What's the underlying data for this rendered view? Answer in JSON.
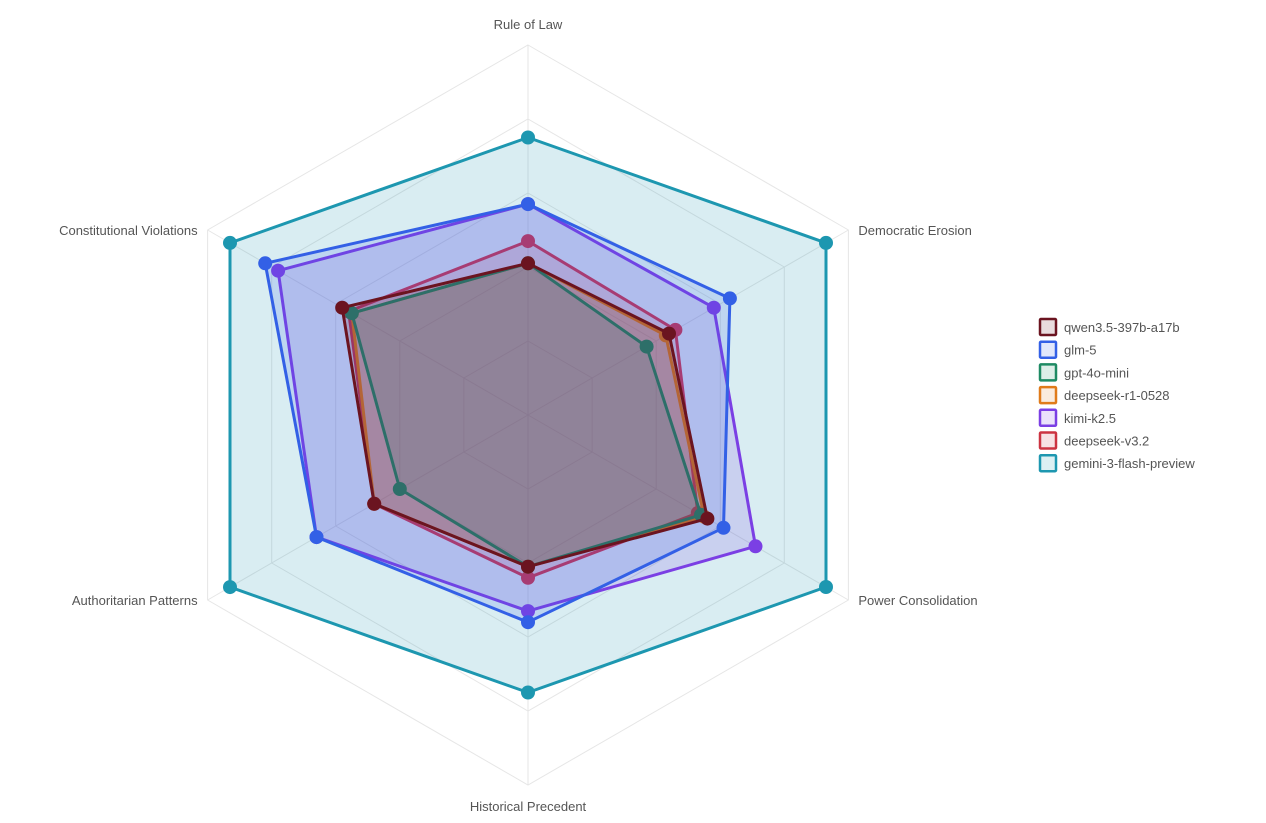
{
  "chart_data": {
    "type": "radar",
    "axes": [
      "Rule of Law",
      "Democratic Erosion",
      "Power Consolidation",
      "Historical Precedent",
      "Authoritarian Patterns",
      "Constitutional Violations"
    ],
    "range": [
      0,
      1
    ],
    "grid_levels": 5,
    "legend_position": "right",
    "series": [
      {
        "name": "qwen3.5-397b-a17b",
        "color": "#6b1420",
        "values": [
          0.41,
          0.44,
          0.56,
          0.41,
          0.48,
          0.58
        ]
      },
      {
        "name": "glm-5",
        "color": "#3360e6",
        "values": [
          0.57,
          0.63,
          0.61,
          0.56,
          0.66,
          0.82
        ]
      },
      {
        "name": "gpt-4o-mini",
        "color": "#1e8a63",
        "values": [
          0.41,
          0.37,
          0.54,
          0.41,
          0.4,
          0.55
        ]
      },
      {
        "name": "deepseek-r1-0528",
        "color": "#e07b1a",
        "values": [
          0.41,
          0.43,
          0.55,
          0.41,
          0.48,
          0.55
        ]
      },
      {
        "name": "kimi-k2.5",
        "color": "#7b3fe4",
        "values": [
          0.57,
          0.58,
          0.71,
          0.53,
          0.66,
          0.78
        ]
      },
      {
        "name": "deepseek-v3.2",
        "color": "#cc3341",
        "values": [
          0.47,
          0.46,
          0.53,
          0.44,
          0.48,
          0.56
        ]
      },
      {
        "name": "gemini-3-flash-preview",
        "color": "#1d97b0",
        "values": [
          0.75,
          0.93,
          0.93,
          0.75,
          0.93,
          0.93
        ]
      }
    ]
  }
}
